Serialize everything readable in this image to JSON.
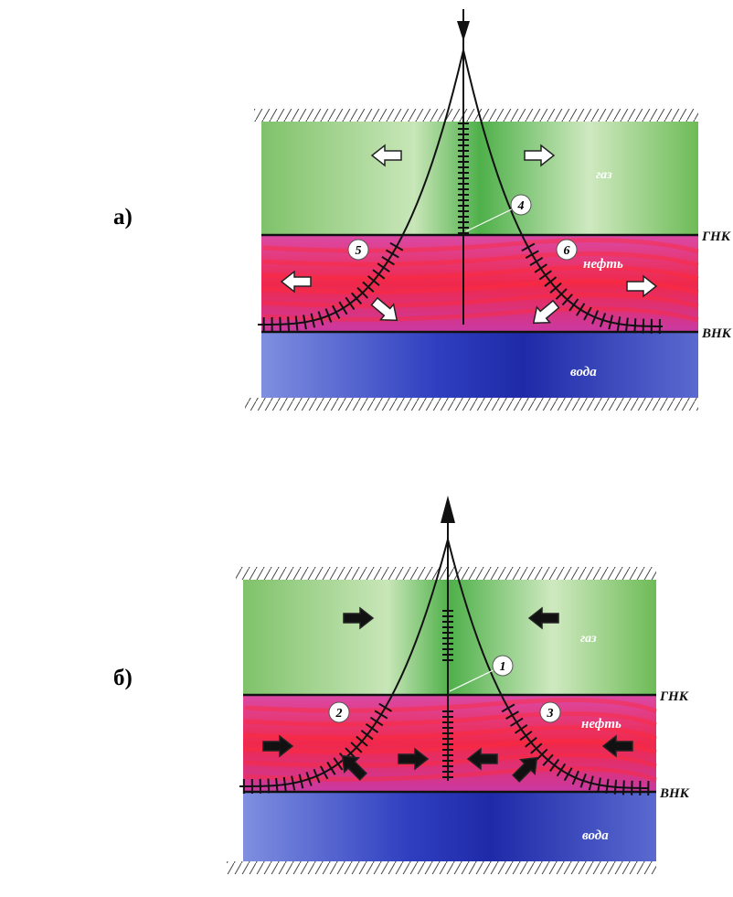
{
  "panels": [
    {
      "id": "a",
      "side_label": "а)",
      "flow": "injection",
      "labels": {
        "gas": "газ",
        "oil": "нефть",
        "water": "вода",
        "gnk": "ГНК",
        "vnk": "ВНК"
      },
      "wells": [
        {
          "number": "4",
          "kind": "inclined-left"
        },
        {
          "number": "5",
          "kind": "inclined-right"
        },
        {
          "number": "6",
          "kind": "vertical"
        }
      ],
      "colors": {
        "gas": "#8cc87a",
        "oil": "#e23c8c",
        "water": "#3a50c8",
        "arrow_fill": "#ffffff"
      }
    },
    {
      "id": "b",
      "side_label": "б)",
      "flow": "production",
      "labels": {
        "gas": "газ",
        "oil": "нефть",
        "water": "вода",
        "gnk": "ГНК",
        "vnk": "ВНК"
      },
      "wells": [
        {
          "number": "1",
          "kind": "inclined-left"
        },
        {
          "number": "2",
          "kind": "inclined-right"
        },
        {
          "number": "3",
          "kind": "vertical"
        }
      ],
      "colors": {
        "gas": "#8cc87a",
        "oil": "#e23c8c",
        "water": "#3a50c8",
        "arrow_fill": "#111111"
      }
    }
  ]
}
